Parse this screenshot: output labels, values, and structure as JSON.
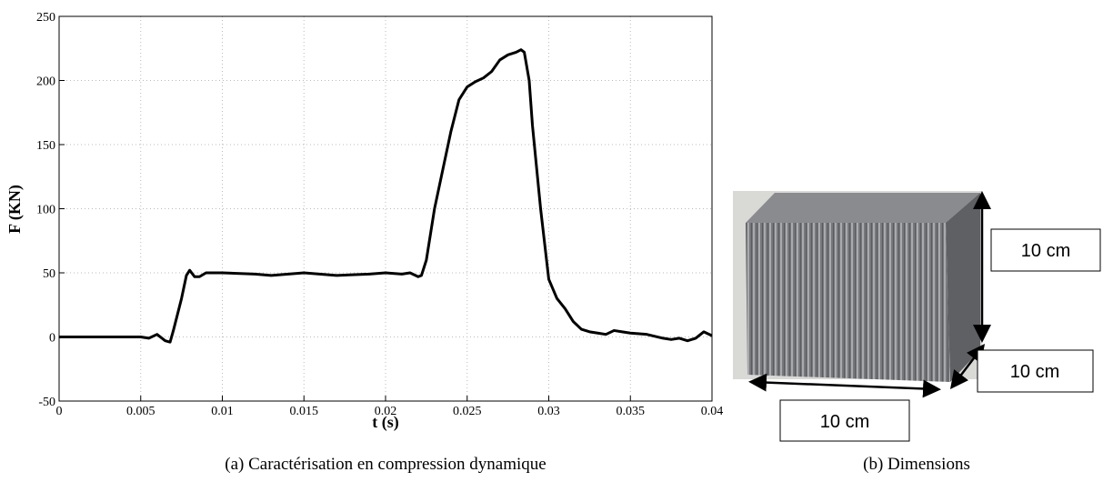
{
  "chart_data": {
    "type": "line",
    "xlabel": "t (s)",
    "ylabel": "F (KN)",
    "x": [
      0,
      0.004,
      0.005,
      0.0055,
      0.006,
      0.0065,
      0.0068,
      0.007,
      0.0075,
      0.0078,
      0.008,
      0.0083,
      0.0086,
      0.009,
      0.01,
      0.012,
      0.013,
      0.015,
      0.017,
      0.019,
      0.02,
      0.021,
      0.0215,
      0.022,
      0.0222,
      0.0225,
      0.023,
      0.0235,
      0.024,
      0.0245,
      0.025,
      0.0255,
      0.026,
      0.0265,
      0.027,
      0.0275,
      0.028,
      0.0283,
      0.0285,
      0.0288,
      0.029,
      0.0295,
      0.03,
      0.0305,
      0.031,
      0.0315,
      0.032,
      0.0325,
      0.033,
      0.0335,
      0.034,
      0.0345,
      0.035,
      0.036,
      0.037,
      0.0375,
      0.038,
      0.0385,
      0.039,
      0.0395,
      0.04
    ],
    "values": [
      0,
      0,
      0,
      -1,
      2,
      -3,
      -4,
      5,
      30,
      48,
      52,
      47,
      47,
      50,
      50,
      49,
      48,
      50,
      48,
      49,
      50,
      49,
      50,
      47,
      48,
      60,
      100,
      130,
      160,
      185,
      195,
      199,
      202,
      207,
      216,
      220,
      222,
      224,
      222,
      200,
      165,
      100,
      45,
      30,
      22,
      12,
      6,
      4,
      3,
      2,
      5,
      4,
      3,
      2,
      -1,
      -2,
      -1,
      -3,
      -1,
      4,
      1
    ],
    "color": "#000000",
    "xlim": [
      0,
      0.04
    ],
    "xticks": [
      0,
      0.005,
      0.01,
      0.015,
      0.02,
      0.025,
      0.03,
      0.035,
      0.04
    ],
    "ylim": [
      -50,
      250
    ],
    "yticks": [
      -50,
      0,
      50,
      100,
      150,
      200,
      250
    ],
    "grid": true
  },
  "photo": {
    "labels": [
      "10 cm",
      "10 cm",
      "10 cm"
    ]
  },
  "captions": [
    "(a)  Caractérisation en compression dynamique",
    "(b)  Dimensions"
  ]
}
